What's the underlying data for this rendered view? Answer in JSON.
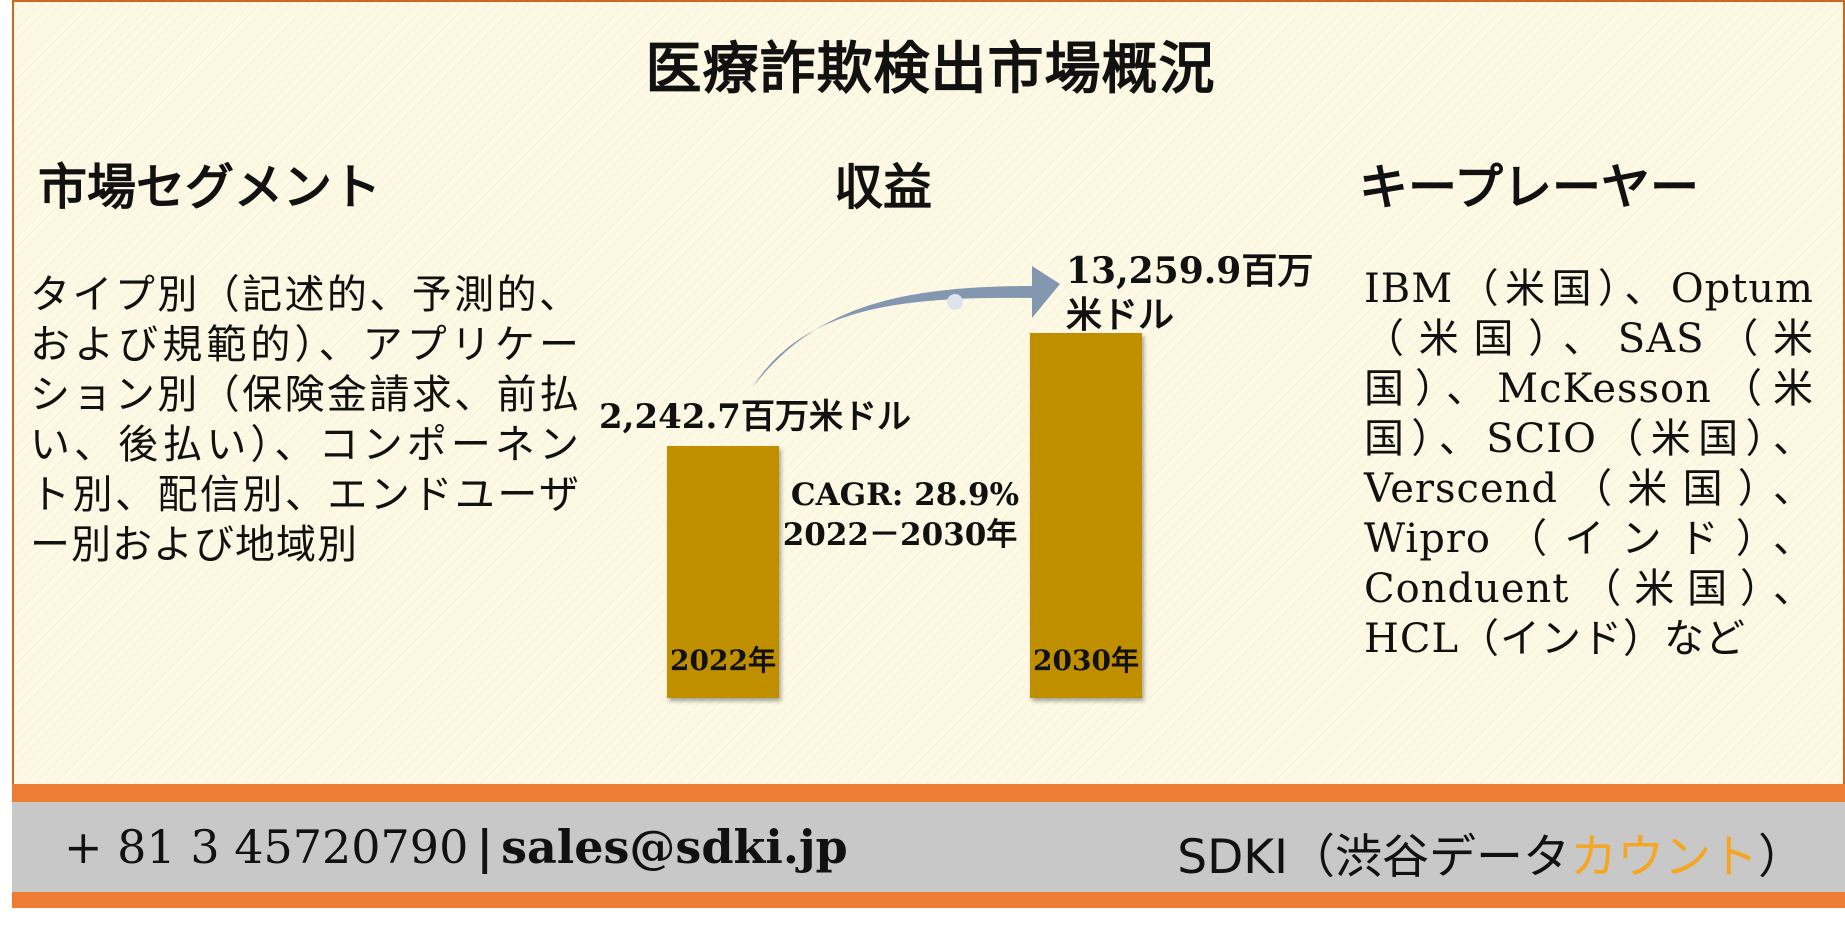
{
  "title": "医療詐欺検出市場概況",
  "segments": {
    "heading": "市場セグメント",
    "text": "タイプ別（記述的、予測的、および規範的）、アプリケーション別（保険金請求、前払い、後払い）、コンポーネント別、配信別、エンドユーザー別および地域別"
  },
  "revenue": {
    "heading": "収益"
  },
  "players": {
    "heading": "キープレーヤー",
    "text": "IBM（米国）、Optum（米国）、SAS（米国）、McKesson（米国）、SCIO（米国）、Verscend（米国）、Wipro（インド）、Conduent（米国）、HCL（インド）など"
  },
  "footer": {
    "phone": "+ 81 3 45720790",
    "separator": "|",
    "email": "sales@sdki.jp",
    "brand_prefix": "SDKI（渋谷データ",
    "brand_highlight": "カウント",
    "brand_suffix": "）"
  },
  "colors": {
    "bar": "#bf8f00",
    "arrow": "#8497b0",
    "accent": "#ec7d32",
    "brand_highlight": "#f5a623"
  },
  "chart_data": {
    "type": "bar",
    "categories": [
      "2022年",
      "2030年"
    ],
    "values": [
      2242.7,
      13259.9
    ],
    "value_labels": [
      "2,242.7百万米ドル",
      "13,259.9百万米ドル"
    ],
    "annotation": [
      "CAGR: 28.9%",
      "2022－2030年"
    ],
    "cagr": 28.9,
    "unit": "百万米ドル"
  }
}
